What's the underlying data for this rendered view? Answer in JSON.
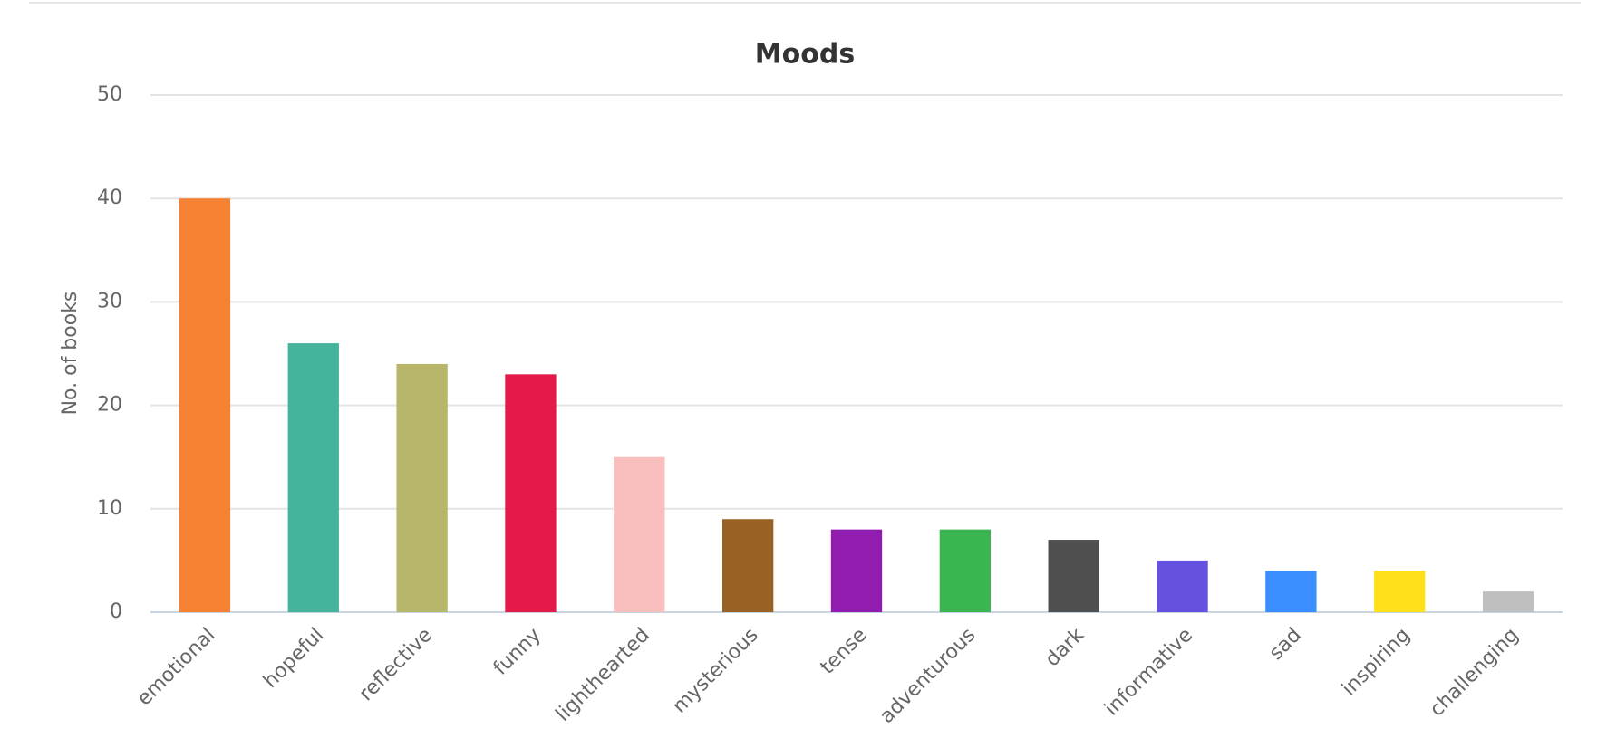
{
  "chart_data": {
    "type": "bar",
    "title": "Moods",
    "y_label": "No. of books",
    "categories": [
      "emotional",
      "hopeful",
      "reflective",
      "funny",
      "lighthearted",
      "mysterious",
      "tense",
      "adventurous",
      "dark",
      "informative",
      "sad",
      "inspiring",
      "challenging"
    ],
    "values": [
      40,
      26,
      24,
      23,
      15,
      9,
      8,
      8,
      7,
      5,
      4,
      4,
      2
    ],
    "colors": [
      "#f58233",
      "#46b39d",
      "#b8b66a",
      "#e5194a",
      "#f9bebe",
      "#9a6125",
      "#921cb0",
      "#3bb54f",
      "#4f4f4f",
      "#6551e0",
      "#3a8eff",
      "#ffe119",
      "#bfbfbf"
    ],
    "ylim": [
      0,
      50
    ],
    "yticks": [
      0,
      10,
      20,
      30,
      40,
      50
    ],
    "grid": true
  }
}
